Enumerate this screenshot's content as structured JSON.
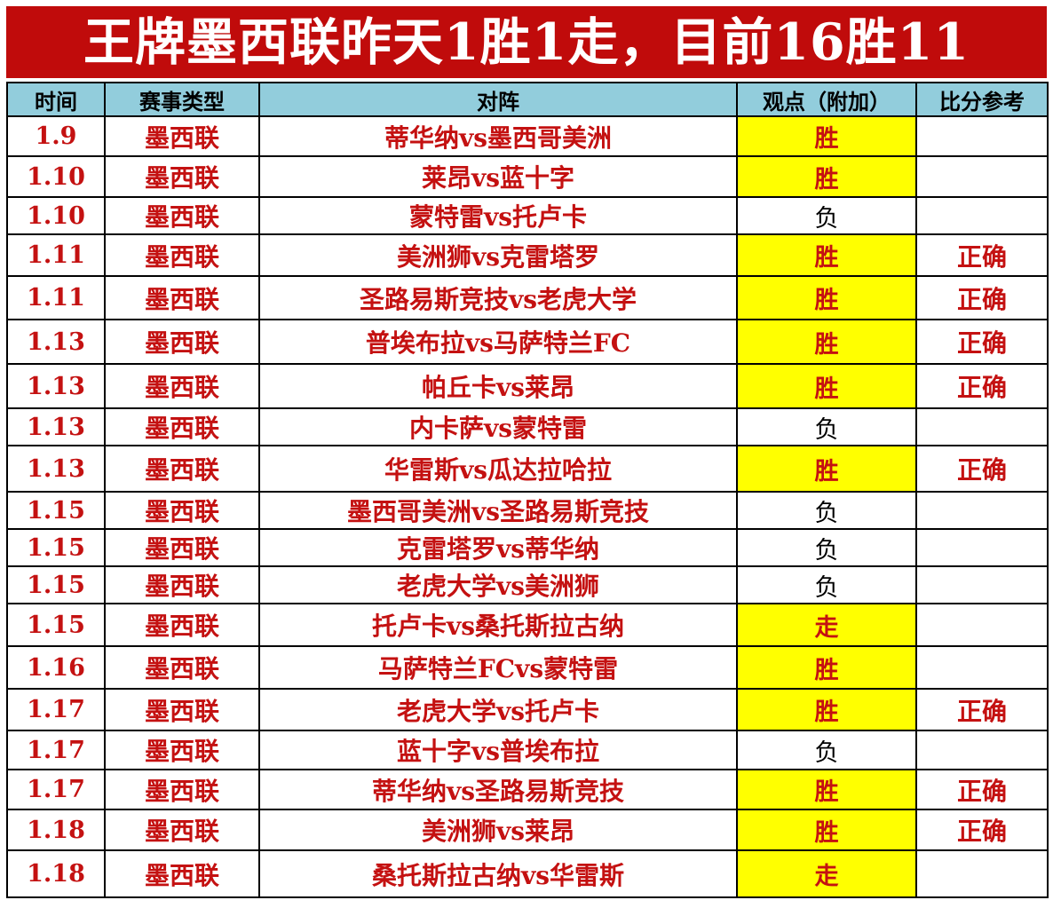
{
  "title": "王牌墨西联昨天1胜1走，目前16胜11",
  "colors": {
    "title_bg": "#c00b0b",
    "header_bg": "#92cddc",
    "highlight_bg": "#ffff00",
    "accent_text": "#c41111"
  },
  "table": {
    "headers": [
      "时间",
      "赛事类型",
      "对阵",
      "观点（附加）",
      "比分参考"
    ],
    "rows": [
      {
        "date": "1.9",
        "league": "墨西联",
        "match": "蒂华纳vs墨西哥美洲",
        "verdict": "胜",
        "highlight": true,
        "result": ""
      },
      {
        "date": "1.10",
        "league": "墨西联",
        "match": "莱昂vs蓝十字",
        "verdict": "胜",
        "highlight": true,
        "result": ""
      },
      {
        "date": "1.10",
        "league": "墨西联",
        "match": "蒙特雷vs托卢卡",
        "verdict": "负",
        "highlight": false,
        "result": ""
      },
      {
        "date": "1.11",
        "league": "墨西联",
        "match": "美洲狮vs克雷塔罗",
        "verdict": "胜",
        "highlight": true,
        "result": "正确"
      },
      {
        "date": "1.11",
        "league": "墨西联",
        "match": "圣路易斯竞技vs老虎大学",
        "verdict": "胜",
        "highlight": true,
        "result": "正确"
      },
      {
        "date": "1.13",
        "league": "墨西联",
        "match": "普埃布拉vs马萨特兰FC",
        "verdict": "胜",
        "highlight": true,
        "result": "正确"
      },
      {
        "date": "1.13",
        "league": "墨西联",
        "match": "帕丘卡vs莱昂",
        "verdict": "胜",
        "highlight": true,
        "result": "正确"
      },
      {
        "date": "1.13",
        "league": "墨西联",
        "match": "内卡萨vs蒙特雷",
        "verdict": "负",
        "highlight": false,
        "result": ""
      },
      {
        "date": "1.13",
        "league": "墨西联",
        "match": "华雷斯vs瓜达拉哈拉",
        "verdict": "胜",
        "highlight": true,
        "result": "正确"
      },
      {
        "date": "1.15",
        "league": "墨西联",
        "match": "墨西哥美洲vs圣路易斯竞技",
        "verdict": "负",
        "highlight": false,
        "result": ""
      },
      {
        "date": "1.15",
        "league": "墨西联",
        "match": "克雷塔罗vs蒂华纳",
        "verdict": "负",
        "highlight": false,
        "result": ""
      },
      {
        "date": "1.15",
        "league": "墨西联",
        "match": "老虎大学vs美洲狮",
        "verdict": "负",
        "highlight": false,
        "result": ""
      },
      {
        "date": "1.15",
        "league": "墨西联",
        "match": "托卢卡vs桑托斯拉古纳",
        "verdict": "走",
        "highlight": true,
        "result": ""
      },
      {
        "date": "1.16",
        "league": "墨西联",
        "match": "马萨特兰FCvs蒙特雷",
        "verdict": "胜",
        "highlight": true,
        "result": ""
      },
      {
        "date": "1.17",
        "league": "墨西联",
        "match": "老虎大学vs托卢卡",
        "verdict": "胜",
        "highlight": true,
        "result": "正确"
      },
      {
        "date": "1.17",
        "league": "墨西联",
        "match": "蓝十字vs普埃布拉",
        "verdict": "负",
        "highlight": false,
        "result": ""
      },
      {
        "date": "1.17",
        "league": "墨西联",
        "match": "蒂华纳vs圣路易斯竞技",
        "verdict": "胜",
        "highlight": true,
        "result": "正确"
      },
      {
        "date": "1.18",
        "league": "墨西联",
        "match": "美洲狮vs莱昂",
        "verdict": "胜",
        "highlight": true,
        "result": "正确"
      },
      {
        "date": "1.18",
        "league": "墨西联",
        "match": "桑托斯拉古纳vs华雷斯",
        "verdict": "走",
        "highlight": true,
        "result": ""
      }
    ]
  }
}
